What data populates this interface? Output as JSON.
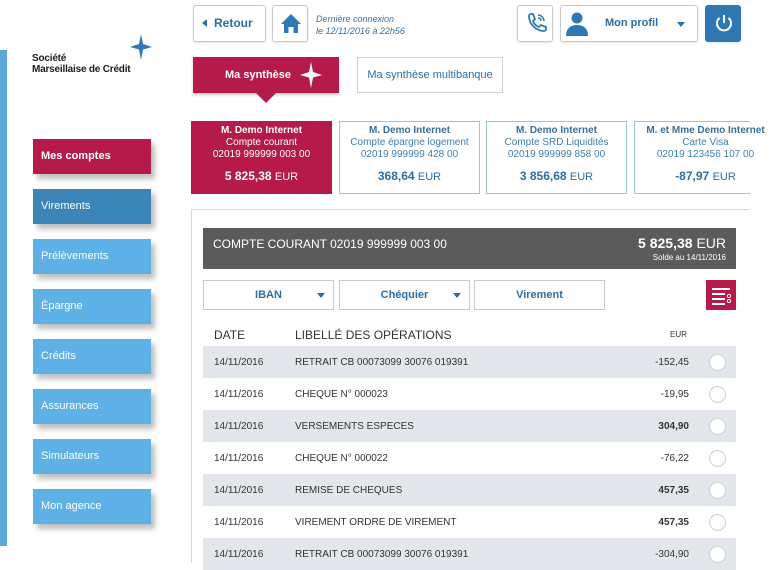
{
  "brand": {
    "line1": "Société",
    "line2": "Marseillaise de Crédit"
  },
  "header": {
    "back_label": "Retour",
    "last_connection_line1": "Dernière connexion",
    "last_connection_line2": "le 12/11/2016 à 22h56",
    "profile_label": "Mon profil"
  },
  "sidebar": {
    "items": [
      {
        "label": "Mes comptes"
      },
      {
        "label": "Virements"
      },
      {
        "label": "Prélèvements"
      },
      {
        "label": "Épargne"
      },
      {
        "label": "Crédits"
      },
      {
        "label": "Assurances"
      },
      {
        "label": "Simulateurs"
      },
      {
        "label": "Mon agence"
      }
    ]
  },
  "tabs": {
    "synthese": "Ma synthèse",
    "multibanque": "Ma synthèse multibanque"
  },
  "accounts": [
    {
      "owner": "M. Demo Internet",
      "type": "Compte courant",
      "number": "02019 999999 003 00",
      "amount": "5 825,38",
      "currency": "EUR"
    },
    {
      "owner": "M. Demo Internet",
      "type": "Compte épargne logement",
      "number": "02019 999999 428 00",
      "amount": "368,64",
      "currency": "EUR"
    },
    {
      "owner": "M. Demo Internet",
      "type": "Compte SRD Liquidités",
      "number": "02019 999999 858 00",
      "amount": "3 856,68",
      "currency": "EUR"
    },
    {
      "owner": "M. et Mme Demo Internet",
      "type": "Carte Visa",
      "number": "02019 123456 107 00",
      "amount": "-87,97",
      "currency": "EUR"
    }
  ],
  "detail": {
    "title": "COMPTE COURANT 02019 999999 003 00",
    "amount": "5 825,38",
    "currency": "EUR",
    "solde": "Solde au 14/11/2016",
    "iban_label": "IBAN",
    "chequier_label": "Chéquier",
    "virement_label": "Virement",
    "col_date": "DATE",
    "col_libelle": "LIBELLÉ DES OPÉRATIONS",
    "col_eur": "EUR"
  },
  "operations": [
    {
      "date": "14/11/2016",
      "label": "RETRAIT CB 00073099 30076 019391",
      "amount": "-152,45"
    },
    {
      "date": "14/11/2016",
      "label": "CHEQUE N° 000023",
      "amount": "-19,95"
    },
    {
      "date": "14/11/2016",
      "label": "VERSEMENTS ESPECES",
      "amount": "304,90"
    },
    {
      "date": "14/11/2016",
      "label": "CHEQUE N° 000022",
      "amount": "-76,22"
    },
    {
      "date": "14/11/2016",
      "label": "REMISE DE CHEQUES",
      "amount": "457,35"
    },
    {
      "date": "14/11/2016",
      "label": "VIREMENT ORDRE DE VIREMENT",
      "amount": "457,35"
    },
    {
      "date": "14/11/2016",
      "label": "RETRAIT CB 00073099 30076 019391",
      "amount": "-304,90"
    }
  ],
  "colors": {
    "accent": "#b51a4a",
    "primary": "#2c6ea3",
    "nav_light": "#5db1e6",
    "nav_dark": "#3b85b8",
    "banner": "#5b5b5b",
    "row_alt": "#e3e6ea"
  },
  "icons": [
    "star-icon",
    "back-arrow-icon",
    "home-icon",
    "phone-icon",
    "user-icon",
    "chevron-down-icon",
    "power-icon",
    "filter-list-icon",
    "radio-check-icon"
  ]
}
